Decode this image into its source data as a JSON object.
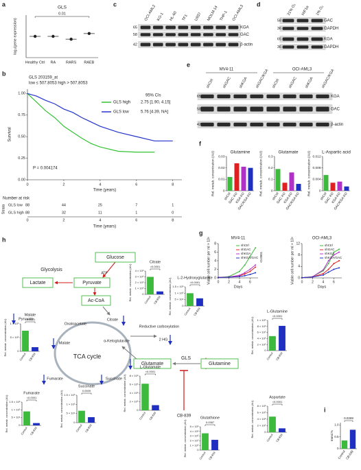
{
  "a": {
    "label": "a",
    "title": "GLS",
    "ylabel": "log₂(gene expression)",
    "categories": [
      "Healthy Ctrl",
      "RA",
      "RARS",
      "RAEB"
    ],
    "values": [
      9.0,
      9.0,
      8.8,
      9.2
    ],
    "ylim": [
      7.5,
      10.5
    ],
    "annotation": "0.01",
    "color": "#222222"
  },
  "b": {
    "label": "b",
    "title": "GLS 203159_at",
    "subtitle": "low ≤ 507.8053 high > 507.8053",
    "ylabel": "Survival",
    "xlabel": "Time (years)",
    "xlim": [
      0,
      8.5
    ],
    "xticks": [
      0,
      2,
      4,
      6,
      8
    ],
    "ylim": [
      0,
      1.05
    ],
    "yticks": [
      {
        "value": 0,
        "label": "0.00"
      },
      {
        "value": 0.25,
        "label": "0.25"
      },
      {
        "value": 0.5,
        "label": "0.50"
      },
      {
        "value": 0.75,
        "label": "0.75"
      },
      {
        "value": 1,
        "label": "1.00"
      }
    ],
    "ci_title": "95% CIs",
    "p_value": "P = 0.004174",
    "series": [
      {
        "name": "GLS high",
        "color": "#33c233",
        "ci": "2.75 [1.90, 4.15]",
        "x": [
          0,
          0.5,
          1,
          1.5,
          2,
          2.5,
          3,
          3.5,
          4,
          5,
          6,
          7
        ],
        "values": [
          1,
          0.9,
          0.8,
          0.72,
          0.62,
          0.55,
          0.48,
          0.42,
          0.38,
          0.33,
          0.32,
          0.32
        ]
      },
      {
        "name": "GLS low",
        "color": "#2233cc",
        "ci": "5.76 [4.39, NA]",
        "x": [
          0,
          0.5,
          1,
          1.5,
          2,
          2.5,
          3,
          4,
          5,
          6,
          7,
          8
        ],
        "values": [
          1,
          0.97,
          0.92,
          0.88,
          0.82,
          0.78,
          0.72,
          0.62,
          0.55,
          0.5,
          0.45,
          0.45
        ]
      }
    ],
    "risk_table": {
      "title": "Number at risk",
      "ylabel": "Strata",
      "xlabel": "Time (years)",
      "rows": [
        {
          "name": "GLS low",
          "color": "#2233cc",
          "values": [
            88,
            44,
            25,
            7,
            1
          ]
        },
        {
          "name": "GLS high",
          "color": "#33c233",
          "values": [
            88,
            32,
            11,
            1,
            0
          ]
        }
      ]
    }
  },
  "c": {
    "label": "c",
    "lanes": [
      "OCI-AML2",
      "KG-1",
      "HL-60",
      "TF1",
      "U937",
      "MOLM-14",
      "THP-1",
      "OCI-AML3"
    ],
    "bands": [
      "KGA",
      "GAC",
      "β-actin"
    ],
    "markers": [
      65,
      58,
      42
    ]
  },
  "d": {
    "label": "d",
    "lanes": [
      "21% O₂",
      "HIF1α",
      "1% O₂"
    ],
    "bands": [
      "GAC",
      "GAPDH",
      "KGA",
      "GAPDH"
    ],
    "markers": [
      58,
      36,
      65,
      36
    ]
  },
  "e": {
    "label": "e",
    "groups": [
      "MV4-11",
      "OCI-AML3"
    ],
    "lanes": [
      "shCtrl",
      "shGAC",
      "shKGA",
      "shGAC/KGA",
      "shCtrl",
      "shGAC",
      "shKGA",
      "shGAC/KGA"
    ],
    "bands": [
      "KGA",
      "GAC",
      "β-actin"
    ],
    "markers": [
      65,
      58,
      42
    ]
  },
  "f": {
    "label": "f",
    "ylabel": "Rel. metab. concentration (AU)",
    "categories": [
      "shCtrl",
      "GAC KO",
      "KGA KO",
      "GAC/KGA KO"
    ],
    "colors": [
      "#3db93d",
      "#e02020",
      "#b030c8",
      "#1f2fbf"
    ],
    "charts": [
      {
        "title": "Glutamine",
        "ylim": [
          0,
          0.03
        ],
        "yticks": [
          0,
          0.01,
          0.02,
          0.03
        ],
        "values": [
          0.012,
          0.024,
          0.021,
          0.02
        ]
      },
      {
        "title": "Glutamate",
        "ylim": [
          0,
          0.3
        ],
        "yticks": [
          0,
          0.1,
          0.2,
          0.3
        ],
        "values": [
          0.19,
          0.07,
          0.16,
          0.06
        ]
      },
      {
        "title": "L-Aspartic acid",
        "ylim": [
          0,
          0.012
        ],
        "yticks": [
          0,
          0.004,
          0.008,
          0.012
        ],
        "values": [
          0.0055,
          0.0028,
          0.0032,
          0.0015
        ]
      }
    ]
  },
  "g": {
    "label": "g",
    "ylabel": "Viable cell number per ml × 10⁶",
    "xlabel": "Days",
    "xlim": [
      0,
      7.5
    ],
    "xticks": [
      0,
      2,
      4,
      6
    ],
    "charts": [
      {
        "title": "MV4-11",
        "ylim": [
          0,
          8
        ],
        "yticks": [
          0,
          2,
          4,
          6,
          8
        ],
        "x": [
          0,
          2,
          4,
          5,
          6,
          7
        ],
        "annotation": "<0.0001",
        "series": [
          {
            "name": "shCtrl",
            "color": "#3db93d",
            "values": [
              0.1,
              0.3,
              1.5,
              3,
              5,
              7
            ]
          },
          {
            "name": "shGAC",
            "color": "#e02020",
            "values": [
              0.1,
              0.2,
              0.5,
              0.9,
              1.5,
              2.5
            ]
          },
          {
            "name": "shKGA",
            "color": "#b030c8",
            "values": [
              0.1,
              0.2,
              0.6,
              1.2,
              2,
              3
            ]
          },
          {
            "name": "shKGA/GAC",
            "color": "#1f2fbf",
            "values": [
              0.1,
              0.15,
              0.3,
              0.5,
              0.8,
              1.2
            ]
          }
        ]
      },
      {
        "title": "OCI-AML3",
        "ylim": [
          0,
          12
        ],
        "yticks": [
          0,
          4,
          8,
          12
        ],
        "x": [
          0,
          2,
          4,
          5,
          6,
          7
        ],
        "series": [
          {
            "name": "shCtrl",
            "color": "#3db93d",
            "values": [
              0.1,
              0.4,
              2.5,
              5,
              9,
              10
            ]
          },
          {
            "name": "shGAC",
            "color": "#e02020",
            "values": [
              0.1,
              0.3,
              1.5,
              3,
              5,
              6
            ]
          },
          {
            "name": "shKGA",
            "color": "#b030c8",
            "values": [
              0.1,
              0.4,
              2.8,
              6,
              8,
              9
            ]
          },
          {
            "name": "shKGA/GAC",
            "color": "#1f2fbf",
            "values": [
              0.1,
              0.3,
              1,
              2,
              3,
              3.5
            ]
          }
        ]
      }
    ]
  },
  "h": {
    "label": "h",
    "categories": [
      "Control",
      "CB-839"
    ],
    "colors": [
      "#3db93d",
      "#1f2fbf"
    ],
    "ylabel": "Rel. metab. concentration (AU)",
    "map": {
      "glucose": "Glucose",
      "glycolysis": "Glycolysis",
      "atp": "ATP",
      "pyruvate": "Pyruvate",
      "lactate": "Lactate",
      "acetyl_coa": "Ac-CoA",
      "pyruvate_small": "Pyruvate",
      "oxaloacetate": "Oxaloacetate",
      "citrate": "Citrate",
      "reductive": "Reductive carboxylation",
      "hg": "2 HG",
      "malate": "Malate",
      "tca": "TCA cycle",
      "akg": "α-Ketoglutarate",
      "glutamate": "Glutamate",
      "gls": "GLS",
      "glutamine": "Glutamine",
      "inhibitor": "CB-839",
      "fumarate": "Fumarate",
      "succinate": "Succinate"
    },
    "charts": [
      {
        "title": "Citrate",
        "ylim": [
          0,
          4000000
        ],
        "p": "<0.0001",
        "values": [
          3000000,
          500000
        ],
        "yticks": [
          0,
          {
            "value": 1000000,
            "label": "1 × 10⁶"
          },
          {
            "value": 2000000,
            "label": "2 × 10⁶"
          },
          {
            "value": 3000000,
            "label": "3 × 10⁶"
          },
          {
            "value": 4000000,
            "label": "4 × 10⁶"
          }
        ]
      },
      {
        "title": "L-2-Hydroxyglutarate",
        "ylim": [
          0,
          150000
        ],
        "p": "<0.0001",
        "values": [
          100000,
          60000
        ],
        "yticks": [
          0,
          {
            "value": 50000,
            "label": "5 × 10⁴"
          },
          {
            "value": 100000,
            "label": "1 × 10⁵"
          },
          {
            "value": 150000,
            "label": "1.5 × 10⁵"
          }
        ]
      },
      {
        "title": "Malate",
        "ylim": [
          0,
          1000000
        ],
        "p": "<0.0001",
        "values": [
          750000,
          150000
        ],
        "yticks": [
          0,
          {
            "value": 500000,
            "label": "5 × 10⁵"
          },
          {
            "value": 1000000,
            "label": "1 × 10⁶"
          }
        ]
      },
      {
        "title": "L-Glutamine",
        "ylim": [
          0,
          1000000
        ],
        "p": "<0.0001",
        "values": [
          480000,
          820000
        ],
        "yticks": [
          0,
          {
            "value": 200000,
            "label": "2 × 10⁵"
          },
          {
            "value": 400000,
            "label": "4 × 10⁵"
          },
          {
            "value": 600000,
            "label": "6 × 10⁵"
          },
          {
            "value": 800000,
            "label": "8 × 10⁵"
          },
          {
            "value": 1000000,
            "label": "1 × 10⁶"
          }
        ]
      },
      {
        "title": "Fumarate",
        "ylim": [
          0,
          150000
        ],
        "p": "<0.0001",
        "values": [
          90000,
          15000
        ],
        "yticks": [
          0,
          {
            "value": 50000,
            "label": "5 × 10⁴"
          },
          {
            "value": 100000,
            "label": "1 × 10⁵"
          },
          {
            "value": 150000,
            "label": "1.5 × 10⁵"
          }
        ]
      },
      {
        "title": "Succinate",
        "ylim": [
          0,
          150000
        ],
        "p": "0.0009",
        "values": [
          65000,
          30000
        ],
        "yticks": [
          0,
          {
            "value": 50000,
            "label": "5 × 10⁴"
          },
          {
            "value": 100000,
            "label": "1 × 10⁵"
          },
          {
            "value": 150000,
            "label": "1.5 × 10⁵"
          }
        ]
      },
      {
        "title": "L-Glutamate",
        "ylim": [
          0,
          8000000
        ],
        "p": "<0.0001",
        "values": [
          6200000,
          1200000
        ],
        "yticks": [
          0,
          {
            "value": 2000000,
            "label": "2 × 10⁶"
          },
          {
            "value": 4000000,
            "label": "4 × 10⁶"
          },
          {
            "value": 6000000,
            "label": "6 × 10⁶"
          },
          {
            "value": 8000000,
            "label": "8 × 10⁶"
          }
        ]
      },
      {
        "title": "Glutathione",
        "ylim": [
          0,
          500000
        ],
        "p": "0.0387",
        "values": [
          360000,
          220000
        ],
        "yticks": [
          0,
          {
            "value": 100000,
            "label": "1 × 10⁵"
          },
          {
            "value": 200000,
            "label": "2 × 10⁵"
          },
          {
            "value": 300000,
            "label": "3 × 10⁵"
          },
          {
            "value": 400000,
            "label": "4 × 10⁵"
          },
          {
            "value": 500000,
            "label": "5 × 10⁵"
          }
        ]
      },
      {
        "title": "Aspartate",
        "ylim": [
          0,
          800000
        ],
        "p": "<0.0001",
        "values": [
          480000,
          120000
        ],
        "yticks": [
          0,
          {
            "value": 200000,
            "label": "2 × 10⁵"
          },
          {
            "value": 400000,
            "label": "4 × 10⁵"
          },
          {
            "value": 600000,
            "label": "6 × 10⁵"
          },
          {
            "value": 800000,
            "label": "8 × 10⁵"
          }
        ]
      }
    ]
  },
  "i": {
    "label": "i",
    "ylabel": "ImmC%",
    "categories": [
      "Control",
      "CB-839"
    ],
    "colors": [
      "#3db93d",
      "#1f2fbf"
    ],
    "ylim": [
      0,
      1.1
    ],
    "yticks": [
      0,
      0.5,
      {
        "value": 1,
        "label": "1.0"
      }
    ],
    "values": [
      0.35,
      0.8
    ],
    "p": "0.0269"
  }
}
